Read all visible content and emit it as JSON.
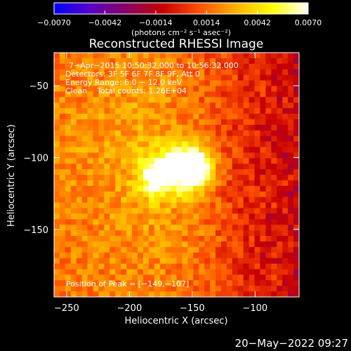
{
  "colorbar": {
    "min": -0.007,
    "max": 0.007,
    "tick_labels": [
      "−0.0070",
      "−0.0042",
      "−0.0014",
      "0.0014",
      "0.0042",
      "0.0070"
    ],
    "tick_values": [
      -0.007,
      -0.0042,
      -0.0014,
      0.0014,
      0.0042,
      0.007
    ],
    "unit_label": "(photons cm⁻² s⁻¹ asec⁻²)"
  },
  "chart_data": {
    "type": "heatmap",
    "title": "Reconstructed RHESSI Image",
    "xlabel": "Heliocentric X (arcsec)",
    "ylabel": "Heliocentric Y (arcsec)",
    "xlim": [
      -260,
      -65
    ],
    "ylim": [
      -197,
      -27
    ],
    "xticks": [
      -250,
      -200,
      -150,
      -100
    ],
    "xtick_labels": [
      "−250",
      "−200",
      "−150",
      "−100"
    ],
    "yticks": [
      -150,
      -100,
      -50
    ],
    "ytick_labels": [
      "−150",
      "−100",
      "−50"
    ],
    "peak": {
      "x": -149,
      "y": -107
    },
    "sources": [
      {
        "x": -149,
        "y": -107,
        "sigma": 10,
        "amp": 0.0075
      },
      {
        "x": -180,
        "y": -113,
        "sigma": 9,
        "amp": 0.0045
      },
      {
        "x": -165,
        "y": -108,
        "sigma": 13,
        "amp": 0.003
      }
    ],
    "colormap": [
      "#0000ff",
      "#5a00c8",
      "#8a0064",
      "#c80000",
      "#ff5000",
      "#ffb000",
      "#ffff00",
      "#ffffff"
    ],
    "annotations": [
      "7−Apr−2015 10:50:32.000 to 10:56:32.000",
      "Detectors: 3F 5F 6F 7F 8F 9F, Att 0",
      "Energy Range: 6.0 − 12.0 keV",
      "Clean    Total counts: 1.26E+04"
    ],
    "peak_label": "Position of Peak = [−149,−107]"
  },
  "footer": {
    "timestamp": "20−May−2022 09:27"
  }
}
